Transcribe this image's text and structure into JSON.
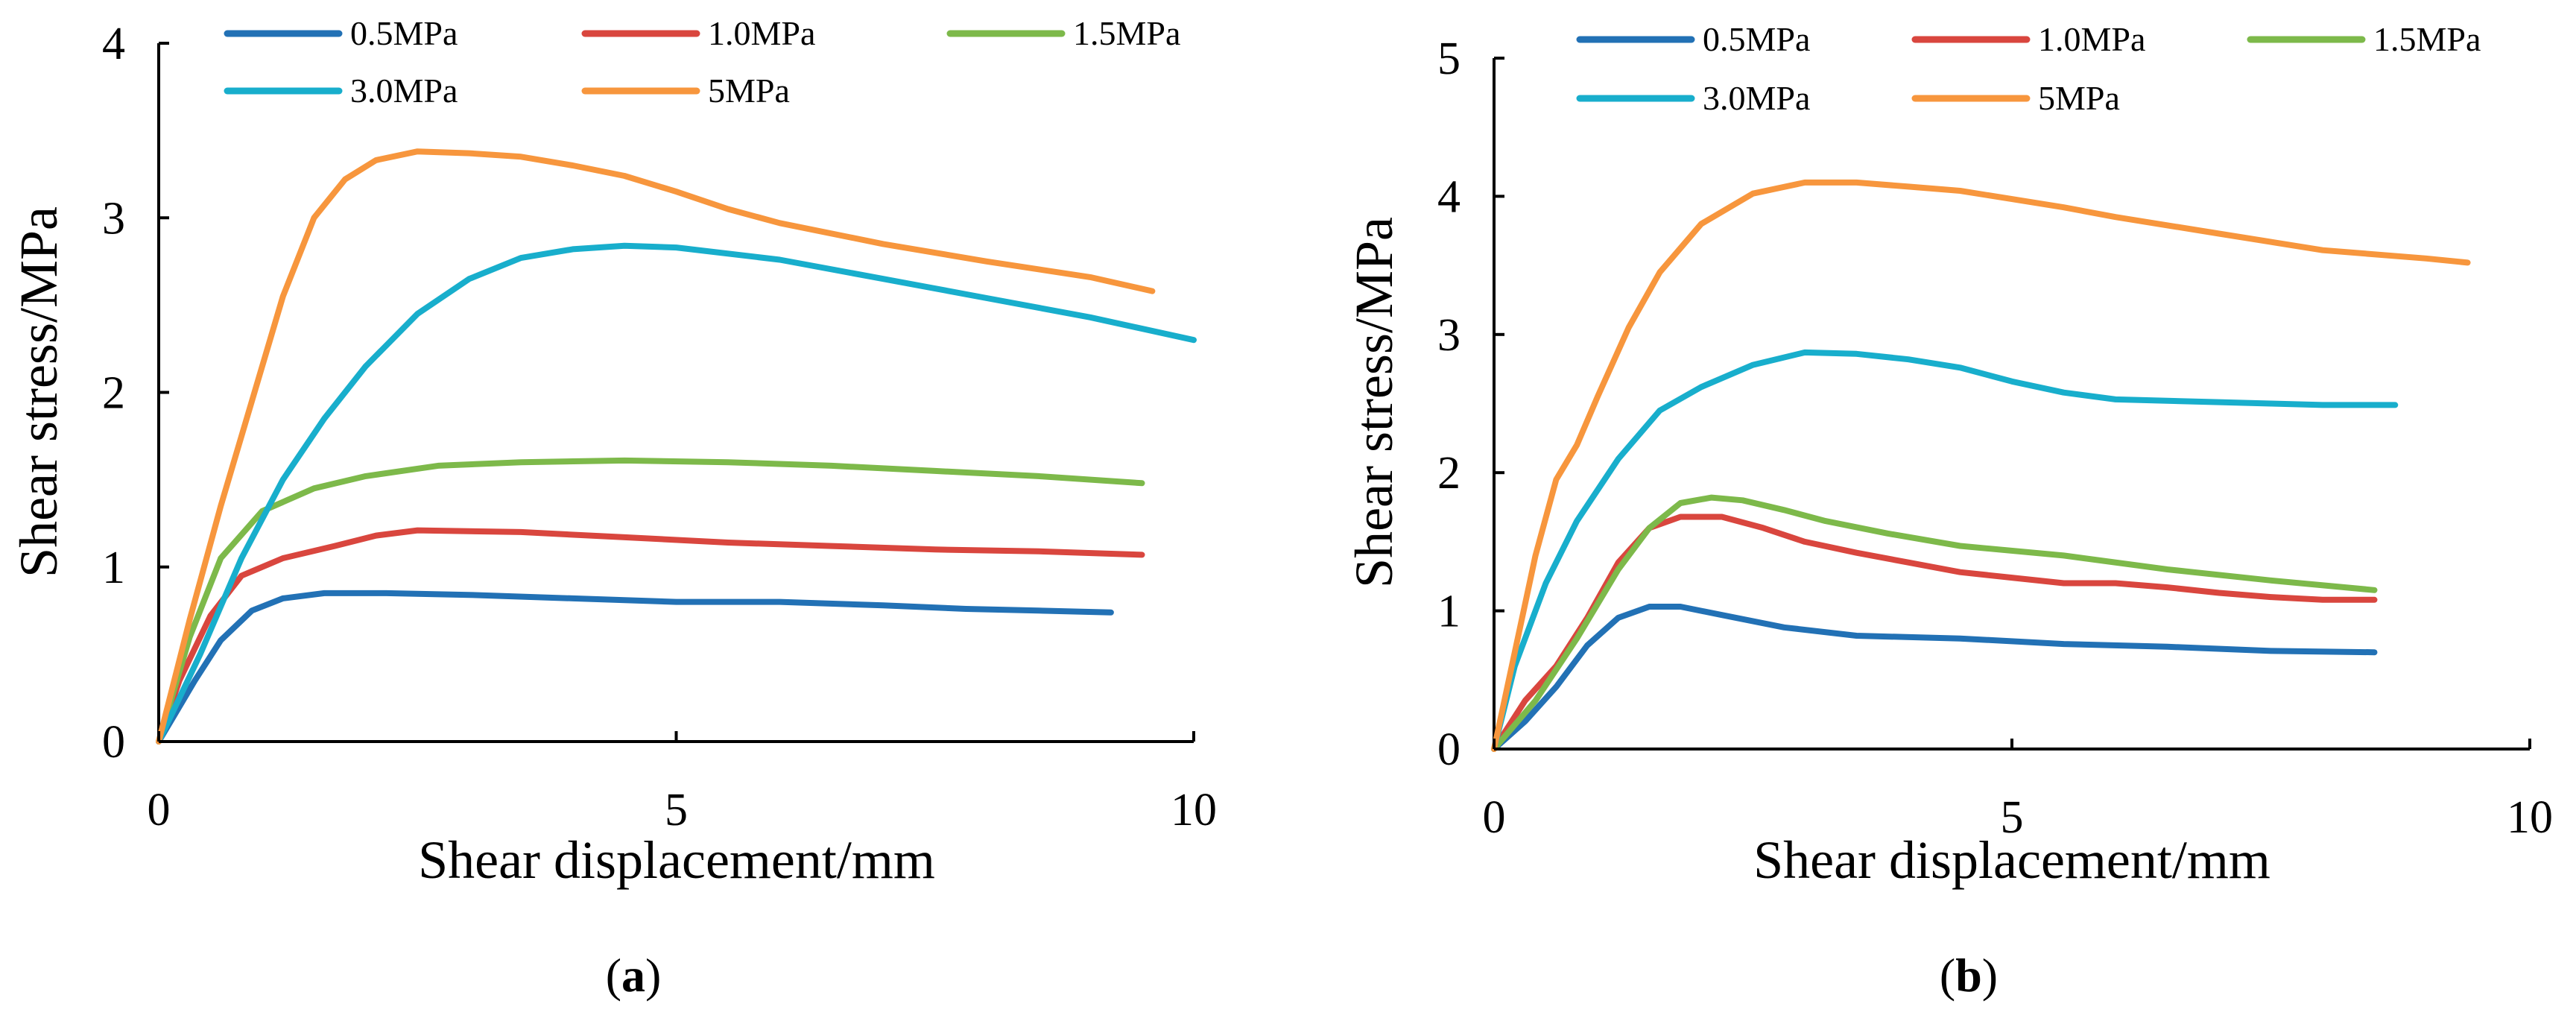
{
  "chart_data": [
    {
      "type": "line",
      "panel_label": "a",
      "xlabel": "Shear displacement/mm",
      "ylabel": "Shear stress/MPa",
      "xlim": [
        0,
        10
      ],
      "ylim": [
        0,
        4
      ],
      "xticks": [
        "0",
        "5",
        "10"
      ],
      "yticks": [
        "0",
        "1",
        "2",
        "3",
        "4"
      ],
      "legend_position": "top",
      "series": [
        {
          "name": "0.5MPa",
          "color": "#2271B5",
          "x": [
            0,
            0.15,
            0.35,
            0.6,
            0.9,
            1.2,
            1.6,
            2.2,
            3,
            4,
            5,
            6,
            7,
            7.8,
            8.5,
            9.2
          ],
          "y": [
            0,
            0.15,
            0.35,
            0.58,
            0.75,
            0.82,
            0.85,
            0.85,
            0.84,
            0.82,
            0.8,
            0.8,
            0.78,
            0.76,
            0.75,
            0.74
          ]
        },
        {
          "name": "1.0MPa",
          "color": "#D9463E",
          "x": [
            0,
            0.2,
            0.5,
            0.8,
            1.2,
            1.7,
            2.1,
            2.5,
            3.5,
            4.5,
            5.5,
            6.5,
            7.5,
            8.5,
            9.5
          ],
          "y": [
            0,
            0.35,
            0.72,
            0.95,
            1.05,
            1.12,
            1.18,
            1.21,
            1.2,
            1.17,
            1.14,
            1.12,
            1.1,
            1.09,
            1.07
          ]
        },
        {
          "name": "1.5MPa",
          "color": "#7DB94A",
          "x": [
            0,
            0.3,
            0.6,
            1,
            1.5,
            2,
            2.7,
            3.5,
            4.5,
            5.5,
            6.5,
            7.5,
            8.5,
            9.5
          ],
          "y": [
            0,
            0.6,
            1.05,
            1.32,
            1.45,
            1.52,
            1.58,
            1.6,
            1.61,
            1.6,
            1.58,
            1.55,
            1.52,
            1.48
          ]
        },
        {
          "name": "3.0MPa",
          "color": "#18AECC",
          "x": [
            0,
            0.4,
            0.8,
            1.2,
            1.6,
            2,
            2.5,
            3,
            3.5,
            4,
            4.5,
            5,
            6,
            7,
            8,
            9,
            10
          ],
          "y": [
            0,
            0.5,
            1.05,
            1.5,
            1.85,
            2.15,
            2.45,
            2.65,
            2.77,
            2.82,
            2.84,
            2.83,
            2.76,
            2.65,
            2.54,
            2.43,
            2.3
          ]
        },
        {
          "name": "5MPa",
          "color": "#F7963D",
          "x": [
            0,
            0.3,
            0.6,
            0.9,
            1.2,
            1.5,
            1.8,
            2.1,
            2.5,
            3,
            3.5,
            4,
            4.5,
            5,
            5.5,
            6,
            7,
            8,
            9,
            9.6
          ],
          "y": [
            0,
            0.7,
            1.35,
            1.95,
            2.55,
            3.0,
            3.22,
            3.33,
            3.38,
            3.37,
            3.35,
            3.3,
            3.24,
            3.15,
            3.05,
            2.97,
            2.85,
            2.75,
            2.66,
            2.58
          ]
        }
      ]
    },
    {
      "type": "line",
      "panel_label": "b",
      "xlabel": "Shear displacement/mm",
      "ylabel": "Shear stress/MPa",
      "xlim": [
        0,
        10
      ],
      "ylim": [
        0,
        5
      ],
      "xticks": [
        "0",
        "5",
        "10"
      ],
      "yticks": [
        "0",
        "1",
        "2",
        "3",
        "4",
        "5"
      ],
      "legend_position": "top",
      "series": [
        {
          "name": "0.5MPa",
          "color": "#2271B5",
          "x": [
            0,
            0.3,
            0.6,
            0.9,
            1.2,
            1.5,
            1.8,
            2.2,
            2.8,
            3.5,
            4.5,
            5.5,
            6.5,
            7.5,
            8.5
          ],
          "y": [
            0,
            0.2,
            0.45,
            0.75,
            0.95,
            1.03,
            1.03,
            0.97,
            0.88,
            0.82,
            0.8,
            0.76,
            0.74,
            0.71,
            0.7
          ]
        },
        {
          "name": "1.0MPa",
          "color": "#D9463E",
          "x": [
            0,
            0.3,
            0.6,
            0.9,
            1.2,
            1.5,
            1.8,
            2.2,
            2.6,
            3,
            3.5,
            4,
            4.5,
            5,
            5.5,
            6,
            6.5,
            7,
            7.5,
            8,
            8.5
          ],
          "y": [
            0,
            0.35,
            0.6,
            0.95,
            1.35,
            1.6,
            1.68,
            1.68,
            1.6,
            1.5,
            1.42,
            1.35,
            1.28,
            1.24,
            1.2,
            1.2,
            1.17,
            1.13,
            1.1,
            1.08,
            1.08
          ]
        },
        {
          "name": "1.5MPa",
          "color": "#7DB94A",
          "x": [
            0,
            0.4,
            0.8,
            1.2,
            1.5,
            1.8,
            2.1,
            2.4,
            2.8,
            3.2,
            3.8,
            4.5,
            5.5,
            6.5,
            7.5,
            8.5
          ],
          "y": [
            0,
            0.35,
            0.8,
            1.3,
            1.6,
            1.78,
            1.82,
            1.8,
            1.73,
            1.65,
            1.56,
            1.47,
            1.4,
            1.3,
            1.22,
            1.15
          ]
        },
        {
          "name": "3.0MPa",
          "color": "#18AECC",
          "x": [
            0,
            0.2,
            0.5,
            0.8,
            1.2,
            1.6,
            2,
            2.5,
            3,
            3.5,
            4,
            4.5,
            5,
            5.5,
            6,
            6.5,
            7,
            7.5,
            8,
            8.7
          ],
          "y": [
            0,
            0.6,
            1.2,
            1.65,
            2.1,
            2.45,
            2.62,
            2.78,
            2.87,
            2.86,
            2.82,
            2.76,
            2.66,
            2.58,
            2.53,
            2.52,
            2.51,
            2.5,
            2.49,
            2.49
          ]
        },
        {
          "name": "5MPa",
          "color": "#F7963D",
          "x": [
            0,
            0.2,
            0.4,
            0.6,
            0.8,
            1.0,
            1.3,
            1.6,
            2,
            2.5,
            3,
            3.5,
            4,
            4.5,
            5,
            5.5,
            6,
            7,
            8,
            9,
            9.4
          ],
          "y": [
            0,
            0.7,
            1.4,
            1.95,
            2.2,
            2.55,
            3.05,
            3.45,
            3.8,
            4.02,
            4.1,
            4.1,
            4.07,
            4.04,
            3.98,
            3.92,
            3.85,
            3.73,
            3.61,
            3.55,
            3.52
          ]
        }
      ]
    }
  ]
}
